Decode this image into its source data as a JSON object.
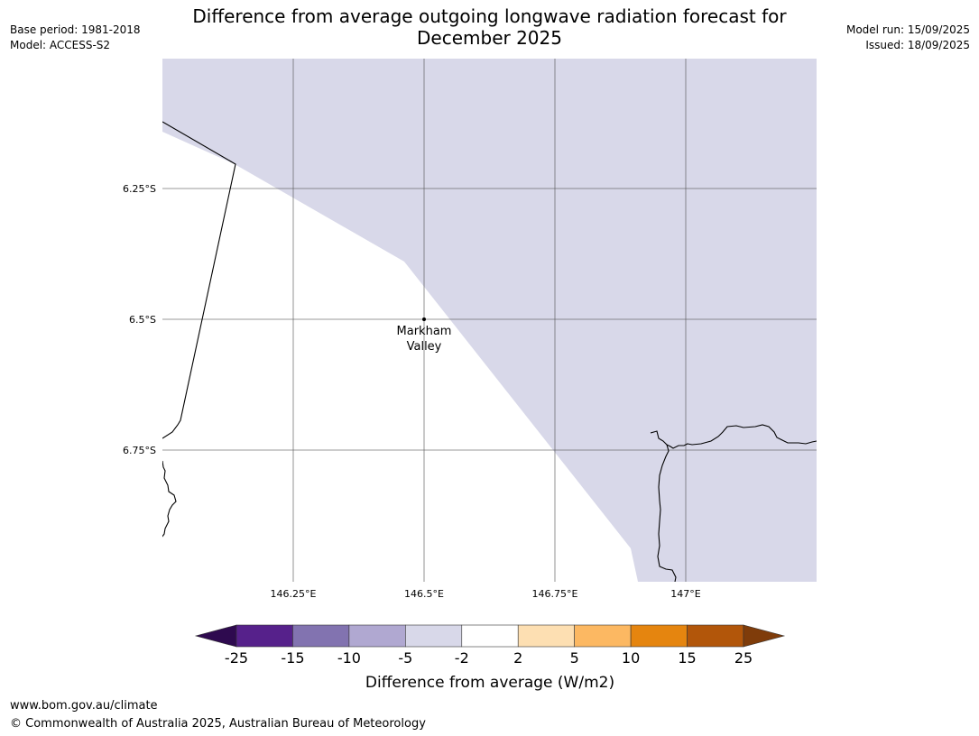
{
  "header": {
    "title_line1": "Difference from average outgoing longwave radiation forecast for",
    "title_line2": "December 2025",
    "base_period": "Base period: 1981-2018",
    "model": "Model: ACCESS-S2",
    "model_run": "Model run: 15/09/2025",
    "issued": "Issued: 18/09/2025"
  },
  "map": {
    "lat_labels": [
      "6.25°S",
      "6.5°S",
      "6.75°S"
    ],
    "lon_labels": [
      "146.25°E",
      "146.5°E",
      "146.75°E",
      "147°E"
    ],
    "place": {
      "name_line1": "Markham",
      "name_line2": "Valley"
    },
    "shaded_category": "-5 to -2",
    "shaded_color": "#d8d8e9"
  },
  "colorbar": {
    "label": "Difference from average (W/m2)",
    "tick_labels": [
      "-25",
      "-15",
      "-10",
      "-5",
      "-2",
      "2",
      "5",
      "10",
      "15",
      "25"
    ],
    "colors": [
      "#56218b",
      "#8273b0",
      "#b0a8d1",
      "#d8d8e9",
      "#ffffff",
      "#fddfb2",
      "#fcb862",
      "#e5850f",
      "#b2560a"
    ],
    "under_color": "#2e0a4f",
    "over_color": "#7f3c0a"
  },
  "footer": {
    "url": "www.bom.gov.au/climate",
    "copyright": "© Commonwealth of Australia 2025, Australian Bureau of Meteorology"
  }
}
